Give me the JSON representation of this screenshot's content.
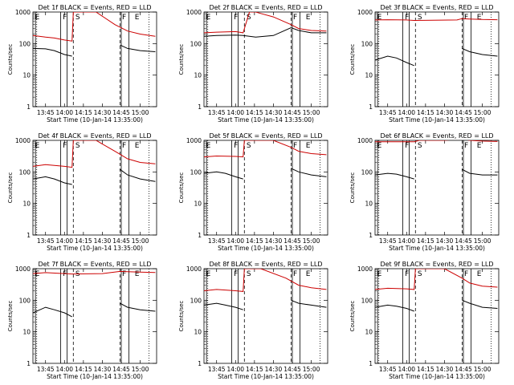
{
  "figure": {
    "common": {
      "ylabel": "Counts/sec",
      "xlabel": "Start Time (10-Jan-14 13:35:00)",
      "x_ticks": [
        "13:45",
        "14:00",
        "14:15",
        "14:30",
        "14:45",
        "15:00"
      ],
      "y_ticks": [
        "1",
        "10",
        "100",
        "1000"
      ],
      "markers": [
        "E",
        "F",
        "S",
        "F",
        "E"
      ],
      "colors": {
        "events": "#000000",
        "lld": "#cc0000",
        "background": "#ffffff"
      }
    }
  },
  "chart_data": [
    {
      "type": "line",
      "title": "Det 1f BLACK = Events, RED = LLD",
      "xlabel": "Start Time (10-Jan-14 13:35:00)",
      "ylabel": "Counts/sec",
      "y_scale": "log",
      "ylim": [
        1,
        1000
      ],
      "x_range": [
        "13:35",
        "15:13"
      ],
      "series": [
        {
          "name": "Events",
          "color": "#000000",
          "x": [
            "13:35",
            "13:45",
            "13:52",
            "14:00",
            "14:06",
            "14:07",
            "14:30",
            "14:44",
            "14:50",
            "15:00",
            "15:12"
          ],
          "y": [
            70,
            68,
            60,
            45,
            40,
            null,
            null,
            90,
            70,
            60,
            55
          ]
        },
        {
          "name": "LLD",
          "color": "#cc0000",
          "x": [
            "13:35",
            "13:45",
            "13:52",
            "14:00",
            "14:06",
            "14:07",
            "14:25",
            "14:40",
            "14:50",
            "15:00",
            "15:12"
          ],
          "y": [
            180,
            160,
            150,
            130,
            120,
            1000,
            1000,
            400,
            250,
            200,
            170
          ]
        }
      ]
    },
    {
      "type": "line",
      "title": "Det 2f BLACK = Events, RED = LLD",
      "xlabel": "Start Time (10-Jan-14 13:35:00)",
      "ylabel": "Counts/sec",
      "y_scale": "log",
      "ylim": [
        1,
        1000
      ],
      "x_range": [
        "13:35",
        "15:13"
      ],
      "series": [
        {
          "name": "Events",
          "color": "#000000",
          "x": [
            "13:35",
            "13:45",
            "14:00",
            "14:06",
            "14:16",
            "14:30",
            "14:44",
            "14:50",
            "15:00",
            "15:12"
          ],
          "y": [
            170,
            180,
            185,
            180,
            160,
            180,
            320,
            260,
            220,
            220
          ]
        },
        {
          "name": "LLD",
          "color": "#cc0000",
          "x": [
            "13:35",
            "13:45",
            "14:00",
            "14:06",
            "14:11",
            "14:16",
            "14:20",
            "14:30",
            "14:44",
            "14:50",
            "15:00",
            "15:12"
          ],
          "y": [
            220,
            230,
            240,
            220,
            1000,
            1000,
            900,
            700,
            400,
            300,
            260,
            250
          ]
        }
      ]
    },
    {
      "type": "line",
      "title": "Det 3f BLACK = Events, RED = LLD",
      "xlabel": "Start Time (10-Jan-14 13:35:00)",
      "ylabel": "Counts/sec",
      "y_scale": "log",
      "ylim": [
        1,
        1000
      ],
      "x_range": [
        "13:35",
        "15:13"
      ],
      "series": [
        {
          "name": "Events",
          "color": "#000000",
          "x": [
            "13:35",
            "13:45",
            "13:52",
            "14:00",
            "14:06",
            "14:07",
            "14:40",
            "14:44",
            "14:50",
            "15:00",
            "15:12"
          ],
          "y": [
            30,
            40,
            35,
            25,
            20,
            null,
            null,
            70,
            55,
            45,
            40
          ]
        },
        {
          "name": "LLD",
          "color": "#cc0000",
          "x": [
            "13:35",
            "13:45",
            "14:00",
            "14:06",
            "14:20",
            "14:40",
            "14:44",
            "14:50",
            "15:00",
            "15:12"
          ],
          "y": [
            560,
            570,
            560,
            540,
            550,
            560,
            620,
            600,
            580,
            570
          ]
        }
      ]
    },
    {
      "type": "line",
      "title": "Det 4f BLACK = Events, RED = LLD",
      "xlabel": "Start Time (10-Jan-14 13:35:00)",
      "ylabel": "Counts/sec",
      "y_scale": "log",
      "ylim": [
        1,
        1000
      ],
      "x_range": [
        "13:35",
        "15:13"
      ],
      "series": [
        {
          "name": "Events",
          "color": "#000000",
          "x": [
            "13:35",
            "13:45",
            "13:52",
            "14:00",
            "14:06",
            "14:07",
            "14:30",
            "14:44",
            "14:50",
            "15:00",
            "15:12"
          ],
          "y": [
            60,
            70,
            60,
            45,
            40,
            null,
            null,
            120,
            80,
            60,
            50
          ]
        },
        {
          "name": "LLD",
          "color": "#cc0000",
          "x": [
            "13:35",
            "13:45",
            "14:00",
            "14:06",
            "14:07",
            "14:25",
            "14:40",
            "14:50",
            "15:00",
            "15:12"
          ],
          "y": [
            150,
            170,
            150,
            140,
            1000,
            1000,
            450,
            260,
            200,
            180
          ]
        }
      ]
    },
    {
      "type": "line",
      "title": "Det 5f BLACK = Events, RED = LLD",
      "xlabel": "Start Time (10-Jan-14 13:35:00)",
      "ylabel": "Counts/sec",
      "y_scale": "log",
      "ylim": [
        1,
        1000
      ],
      "x_range": [
        "13:35",
        "15:13"
      ],
      "series": [
        {
          "name": "Events",
          "color": "#000000",
          "x": [
            "13:35",
            "13:45",
            "13:52",
            "14:00",
            "14:06",
            "14:07",
            "14:40",
            "14:44",
            "14:50",
            "15:00",
            "15:12"
          ],
          "y": [
            90,
            100,
            90,
            70,
            60,
            null,
            null,
            130,
            100,
            80,
            70
          ]
        },
        {
          "name": "LLD",
          "color": "#cc0000",
          "x": [
            "13:35",
            "13:45",
            "14:00",
            "14:06",
            "14:07",
            "14:30",
            "14:44",
            "14:50",
            "15:00",
            "15:12"
          ],
          "y": [
            300,
            320,
            310,
            300,
            1000,
            1000,
            600,
            450,
            380,
            350
          ]
        }
      ]
    },
    {
      "type": "line",
      "title": "Det 6f BLACK = Events, RED = LLD",
      "xlabel": "Start Time (10-Jan-14 13:35:00)",
      "ylabel": "Counts/sec",
      "y_scale": "log",
      "ylim": [
        1,
        1000
      ],
      "x_range": [
        "13:35",
        "15:13"
      ],
      "series": [
        {
          "name": "Events",
          "color": "#000000",
          "x": [
            "13:35",
            "13:45",
            "13:52",
            "14:00",
            "14:06",
            "14:07",
            "14:40",
            "14:44",
            "14:50",
            "15:00",
            "15:12"
          ],
          "y": [
            80,
            90,
            85,
            70,
            60,
            null,
            null,
            120,
            90,
            80,
            80
          ]
        },
        {
          "name": "LLD",
          "color": "#cc0000",
          "x": [
            "13:35",
            "13:45",
            "14:00",
            "14:06",
            "14:10",
            "14:15",
            "14:20",
            "14:30",
            "14:44",
            "14:50",
            "15:00",
            "15:12"
          ],
          "y": [
            900,
            900,
            900,
            900,
            1000,
            1000,
            1000,
            1000,
            1100,
            1000,
            950,
            920
          ]
        }
      ]
    },
    {
      "type": "line",
      "title": "Det 7f BLACK = Events, RED = LLD",
      "xlabel": "Start Time (10-Jan-14 13:35:00)",
      "ylabel": "Counts/sec",
      "y_scale": "log",
      "ylim": [
        1,
        1000
      ],
      "x_range": [
        "13:35",
        "15:13"
      ],
      "series": [
        {
          "name": "Events",
          "color": "#000000",
          "x": [
            "13:35",
            "13:45",
            "13:52",
            "14:00",
            "14:06",
            "14:07",
            "14:30",
            "14:44",
            "14:50",
            "15:00",
            "15:12"
          ],
          "y": [
            40,
            60,
            50,
            40,
            30,
            null,
            null,
            80,
            60,
            50,
            45
          ]
        },
        {
          "name": "LLD",
          "color": "#cc0000",
          "x": [
            "13:35",
            "13:45",
            "14:00",
            "14:06",
            "14:30",
            "14:44",
            "14:50",
            "15:00",
            "15:12"
          ],
          "y": [
            700,
            750,
            700,
            680,
            700,
            820,
            800,
            780,
            760
          ]
        }
      ]
    },
    {
      "type": "line",
      "title": "Det 8f BLACK = Events, RED = LLD",
      "xlabel": "Start Time (10-Jan-14 13:35:00)",
      "ylabel": "Counts/sec",
      "y_scale": "log",
      "ylim": [
        1,
        1000
      ],
      "x_range": [
        "13:35",
        "15:13"
      ],
      "series": [
        {
          "name": "Events",
          "color": "#000000",
          "x": [
            "13:35",
            "13:45",
            "13:52",
            "14:00",
            "14:06",
            "14:07",
            "14:40",
            "14:44",
            "14:50",
            "15:00",
            "15:12"
          ],
          "y": [
            70,
            80,
            70,
            60,
            50,
            null,
            null,
            100,
            80,
            70,
            60
          ]
        },
        {
          "name": "LLD",
          "color": "#cc0000",
          "x": [
            "13:35",
            "13:45",
            "14:00",
            "14:06",
            "14:07",
            "14:20",
            "14:40",
            "14:50",
            "15:00",
            "15:12"
          ],
          "y": [
            200,
            220,
            200,
            190,
            1000,
            1000,
            500,
            300,
            250,
            220
          ]
        }
      ]
    },
    {
      "type": "line",
      "title": "Det 9f BLACK = Events, RED = LLD",
      "xlabel": "Start Time (10-Jan-14 13:35:00)",
      "ylabel": "Counts/sec",
      "y_scale": "log",
      "ylim": [
        1,
        1000
      ],
      "x_range": [
        "13:35",
        "15:13"
      ],
      "series": [
        {
          "name": "Events",
          "color": "#000000",
          "x": [
            "13:35",
            "13:45",
            "13:52",
            "14:00",
            "14:06",
            "14:07",
            "14:40",
            "14:44",
            "14:50",
            "15:00",
            "15:12"
          ],
          "y": [
            60,
            70,
            65,
            55,
            45,
            null,
            null,
            100,
            80,
            60,
            55
          ]
        },
        {
          "name": "LLD",
          "color": "#cc0000",
          "x": [
            "13:35",
            "13:45",
            "14:00",
            "14:06",
            "14:07",
            "14:30",
            "14:44",
            "14:50",
            "15:00",
            "15:12"
          ],
          "y": [
            220,
            240,
            230,
            220,
            1000,
            1000,
            500,
            350,
            280,
            260
          ]
        }
      ]
    }
  ]
}
